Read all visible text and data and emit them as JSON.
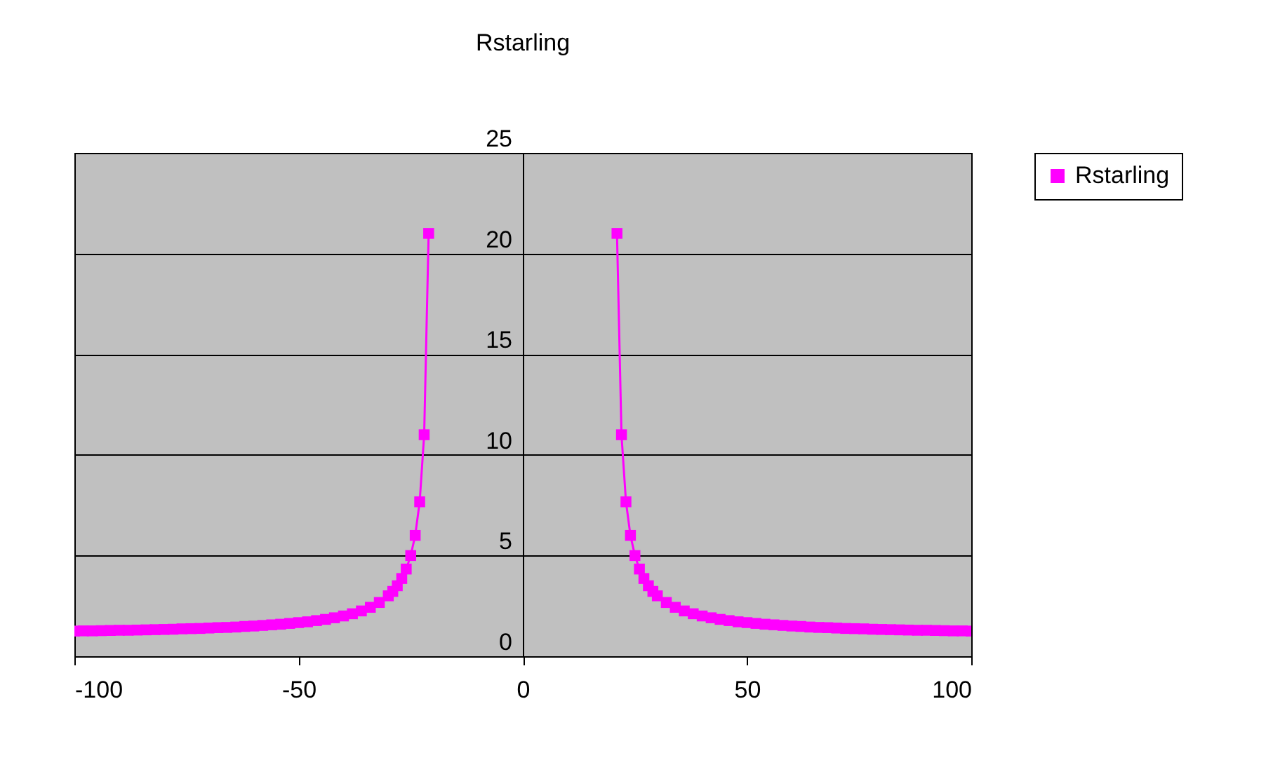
{
  "chart_data": {
    "type": "line",
    "title": "Rstarling",
    "x": [
      -100,
      -98,
      -96,
      -94,
      -92,
      -90,
      -88,
      -86,
      -84,
      -82,
      -80,
      -78,
      -76,
      -74,
      -72,
      -70,
      -68,
      -66,
      -64,
      -62,
      -60,
      -58,
      -56,
      -54,
      -52,
      -50,
      -48,
      -46,
      -44,
      -42,
      -40,
      -38,
      -36,
      -34,
      -32,
      -30,
      -29,
      -28,
      -27,
      -26,
      -25,
      -24,
      -23,
      -22,
      -21,
      0,
      21,
      22,
      23,
      24,
      25,
      26,
      27,
      28,
      29,
      30,
      32,
      34,
      36,
      38,
      40,
      42,
      44,
      46,
      48,
      50,
      52,
      54,
      56,
      58,
      60,
      62,
      64,
      66,
      68,
      70,
      72,
      74,
      76,
      78,
      80,
      82,
      84,
      86,
      88,
      90,
      92,
      94,
      96,
      98,
      100
    ],
    "series": [
      {
        "name": "Rstarling",
        "color": "#ff00ff",
        "values": [
          1.25,
          1.26,
          1.26,
          1.27,
          1.28,
          1.29,
          1.29,
          1.3,
          1.31,
          1.32,
          1.33,
          1.34,
          1.36,
          1.37,
          1.38,
          1.4,
          1.42,
          1.43,
          1.45,
          1.48,
          1.5,
          1.53,
          1.56,
          1.59,
          1.63,
          1.67,
          1.71,
          1.77,
          1.83,
          1.91,
          2.0,
          2.11,
          2.25,
          2.43,
          2.67,
          3.0,
          3.22,
          3.5,
          3.86,
          4.33,
          5.0,
          6.0,
          7.67,
          11.0,
          21.0,
          null,
          21.0,
          11.0,
          7.67,
          6.0,
          5.0,
          4.33,
          3.86,
          3.5,
          3.22,
          3.0,
          2.67,
          2.43,
          2.25,
          2.11,
          2.0,
          1.91,
          1.83,
          1.77,
          1.71,
          1.67,
          1.63,
          1.59,
          1.56,
          1.53,
          1.5,
          1.48,
          1.45,
          1.43,
          1.42,
          1.4,
          1.38,
          1.37,
          1.36,
          1.34,
          1.33,
          1.32,
          1.31,
          1.3,
          1.29,
          1.29,
          1.28,
          1.27,
          1.26,
          1.26,
          1.25
        ]
      }
    ],
    "xlim": [
      -100,
      100
    ],
    "xticks": [
      -100,
      -50,
      0,
      50,
      100
    ],
    "ylim": [
      0,
      25
    ],
    "yticks": [
      0,
      5,
      10,
      15,
      20,
      25
    ],
    "grid": "y",
    "legend": "right",
    "marker": "square",
    "line_style": "solid"
  }
}
